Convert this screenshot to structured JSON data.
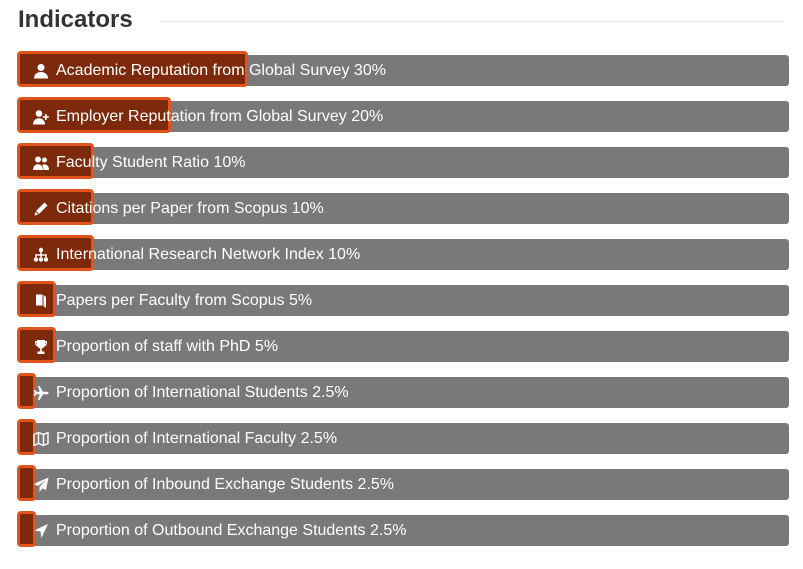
{
  "section": {
    "title": "Indicators"
  },
  "indicators": [
    {
      "label": "Academic Reputation from Global Survey 30%",
      "weight": 30,
      "icon": "user-icon"
    },
    {
      "label": "Employer Reputation from Global Survey 20%",
      "weight": 20,
      "icon": "user-plus-icon"
    },
    {
      "label": "Faculty Student Ratio 10%",
      "weight": 10,
      "icon": "users-icon"
    },
    {
      "label": "Citations per Paper from Scopus 10%",
      "weight": 10,
      "icon": "pencil-icon"
    },
    {
      "label": "International Research Network Index 10%",
      "weight": 10,
      "icon": "sitemap-icon"
    },
    {
      "label": "Papers per Faculty from Scopus 5%",
      "weight": 5,
      "icon": "book-icon"
    },
    {
      "label": "Proportion of staff with PhD 5%",
      "weight": 5,
      "icon": "trophy-icon"
    },
    {
      "label": "Proportion of International Students 2.5%",
      "weight": 2.5,
      "icon": "plane-icon"
    },
    {
      "label": "Proportion of International Faculty 2.5%",
      "weight": 2.5,
      "icon": "map-icon"
    },
    {
      "label": "Proportion of Inbound Exchange Students 2.5%",
      "weight": 2.5,
      "icon": "paper-plane-icon"
    },
    {
      "label": "Proportion of Outbound Exchange Students 2.5%",
      "weight": 2.5,
      "icon": "location-arrow-icon"
    }
  ],
  "colors": {
    "title": "#333333",
    "track": "#797979",
    "fill": "#7d2a0c",
    "fill_border": "#e3541c",
    "label": "#ffffff"
  }
}
